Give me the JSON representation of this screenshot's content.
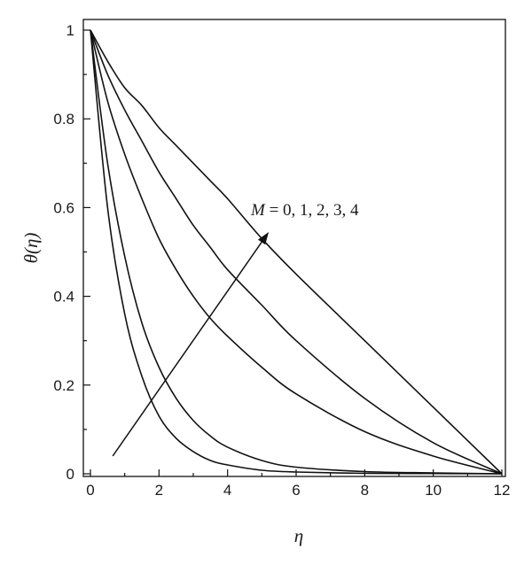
{
  "chart_data": {
    "type": "line",
    "xlabel": "η",
    "ylabel": "θ(η)",
    "xlim": [
      0,
      12
    ],
    "ylim": [
      0,
      1
    ],
    "xticks": [
      "0",
      "2",
      "4",
      "6",
      "8",
      "10",
      "12"
    ],
    "yticks": [
      "0",
      "0.2",
      "0.4",
      "0.6",
      "0.8",
      "1"
    ],
    "grid": false,
    "legend": "none",
    "annotation": {
      "symbol": "M",
      "equals": " = ",
      "values_text": "0, 1, 2, 3, 4",
      "arrow_from": [
        0.65,
        0.04
      ],
      "arrow_to": [
        5.2,
        0.545
      ]
    },
    "series": [
      {
        "x": [
          0,
          0.5,
          1,
          1.5,
          2,
          2.5,
          3,
          3.5,
          4,
          5,
          6,
          8,
          10,
          12
        ],
        "y": [
          1,
          0.6,
          0.36,
          0.22,
          0.13,
          0.08,
          0.05,
          0.03,
          0.02,
          0.008,
          0.004,
          0.001,
          0.0005,
          0
        ]
      },
      {
        "x": [
          0,
          0.5,
          1,
          1.5,
          2,
          2.5,
          3,
          3.5,
          4,
          5,
          6,
          8,
          10,
          12
        ],
        "y": [
          1,
          0.7,
          0.49,
          0.34,
          0.24,
          0.17,
          0.12,
          0.085,
          0.06,
          0.03,
          0.015,
          0.005,
          0.002,
          0
        ]
      },
      {
        "x": [
          0,
          0.5,
          1,
          1.5,
          2,
          2.5,
          3,
          3.5,
          4,
          5,
          6,
          8,
          10,
          12
        ],
        "y": [
          1,
          0.84,
          0.72,
          0.62,
          0.53,
          0.46,
          0.4,
          0.35,
          0.31,
          0.24,
          0.18,
          0.095,
          0.04,
          0
        ]
      },
      {
        "x": [
          0,
          0.5,
          1,
          1.5,
          2,
          2.5,
          3,
          3.5,
          4,
          5,
          6,
          8,
          10,
          12
        ],
        "y": [
          1,
          0.9,
          0.82,
          0.75,
          0.68,
          0.62,
          0.56,
          0.51,
          0.46,
          0.38,
          0.3,
          0.17,
          0.07,
          0
        ]
      },
      {
        "x": [
          0,
          0.5,
          1,
          1.5,
          2,
          2.5,
          3,
          3.5,
          4,
          5,
          6,
          8,
          10,
          12
        ],
        "y": [
          1,
          0.93,
          0.87,
          0.83,
          0.78,
          0.74,
          0.7,
          0.66,
          0.62,
          0.53,
          0.45,
          0.3,
          0.15,
          0
        ]
      }
    ]
  }
}
